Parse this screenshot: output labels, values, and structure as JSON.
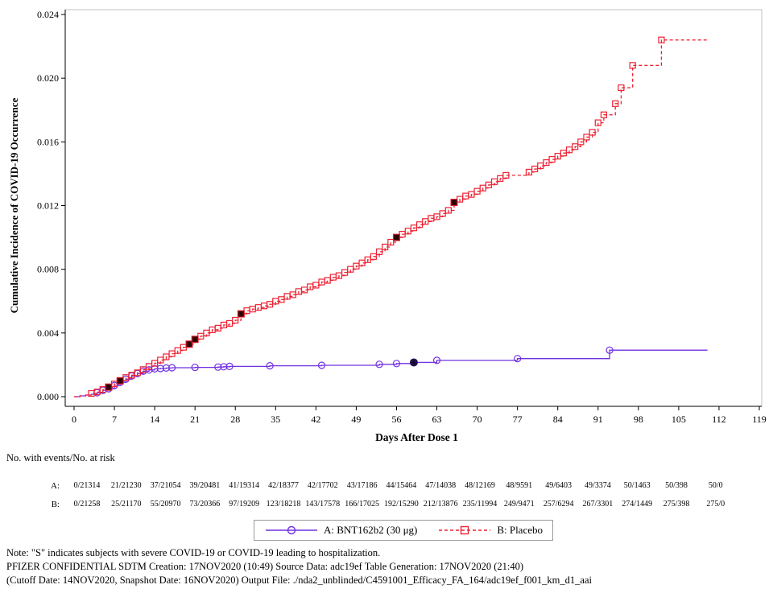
{
  "chart_data": {
    "type": "line",
    "step": true,
    "title": "",
    "xlabel": "Days After Dose 1",
    "ylabel": "Cumulative Incidence of COVID-19 Occurrence",
    "xlim": [
      0,
      119
    ],
    "ylim": [
      0,
      0.024
    ],
    "xticks": [
      0,
      7,
      14,
      21,
      28,
      35,
      42,
      49,
      56,
      63,
      70,
      77,
      84,
      91,
      98,
      105,
      112,
      119
    ],
    "yticks": [
      [
        0,
        "0.000"
      ],
      [
        0.004,
        "0.004"
      ],
      [
        0.008,
        "0.008"
      ],
      [
        0.012,
        "0.012"
      ],
      [
        0.016,
        "0.016"
      ],
      [
        0.02,
        "0.020"
      ],
      [
        0.024,
        "0.024"
      ]
    ],
    "severe_symbol": "S",
    "series": [
      {
        "name": "A: BNT162b2 (30 μg)",
        "color": "#7030E0",
        "severe_color": "#241152",
        "line": "solid",
        "marker": "circle",
        "points": [
          [
            0,
            0,
            ""
          ],
          [
            1,
            5e-05,
            ""
          ],
          [
            2,
            0.0001,
            ""
          ],
          [
            3,
            0.00015,
            ""
          ],
          [
            4,
            0.00025,
            "m"
          ],
          [
            5,
            0.0004,
            "m"
          ],
          [
            6,
            0.0005,
            "m"
          ],
          [
            7,
            0.0007,
            "m"
          ],
          [
            8,
            0.0009,
            "m"
          ],
          [
            9,
            0.0011,
            "m"
          ],
          [
            10,
            0.0013,
            "m"
          ],
          [
            11,
            0.00145,
            "m"
          ],
          [
            12,
            0.0016,
            "m"
          ],
          [
            13,
            0.00168,
            "m"
          ],
          [
            14,
            0.00175,
            "m"
          ],
          [
            15,
            0.00177,
            "m"
          ],
          [
            16,
            0.0018,
            "m"
          ],
          [
            17,
            0.00182,
            "m"
          ],
          [
            21,
            0.00184,
            "m"
          ],
          [
            25,
            0.00186,
            "m"
          ],
          [
            26,
            0.00188,
            "m"
          ],
          [
            27,
            0.0019,
            "m"
          ],
          [
            34,
            0.00194,
            "m"
          ],
          [
            43,
            0.00197,
            "m"
          ],
          [
            53,
            0.00203,
            "m"
          ],
          [
            56,
            0.00208,
            "m"
          ],
          [
            59,
            0.00215,
            "s"
          ],
          [
            63,
            0.00228,
            "m"
          ],
          [
            77,
            0.00239,
            "m"
          ],
          [
            93,
            0.00292,
            "m"
          ],
          [
            110,
            0.00292,
            ""
          ]
        ]
      },
      {
        "name": "B: Placebo",
        "color": "#EE2233",
        "severe_color": "#420707",
        "line": "dashed",
        "marker": "square",
        "points": [
          [
            0,
            0,
            ""
          ],
          [
            1,
            5e-05,
            ""
          ],
          [
            2,
            0.0001,
            ""
          ],
          [
            3,
            0.0002,
            "m"
          ],
          [
            4,
            0.0003,
            "m"
          ],
          [
            5,
            0.00045,
            "m"
          ],
          [
            6,
            0.0006,
            "s"
          ],
          [
            7,
            0.0008,
            "m"
          ],
          [
            8,
            0.001,
            "s"
          ],
          [
            9,
            0.0012,
            "m"
          ],
          [
            10,
            0.00135,
            "m"
          ],
          [
            11,
            0.0015,
            "m"
          ],
          [
            12,
            0.0017,
            "m"
          ],
          [
            13,
            0.0019,
            "m"
          ],
          [
            14,
            0.0021,
            "m"
          ],
          [
            15,
            0.0023,
            "m"
          ],
          [
            16,
            0.0025,
            "m"
          ],
          [
            17,
            0.0027,
            "m"
          ],
          [
            18,
            0.0029,
            "m"
          ],
          [
            19,
            0.0031,
            "m"
          ],
          [
            20,
            0.0033,
            "s"
          ],
          [
            21,
            0.0036,
            "s"
          ],
          [
            22,
            0.0038,
            "m"
          ],
          [
            23,
            0.004,
            "m"
          ],
          [
            24,
            0.0042,
            "m"
          ],
          [
            25,
            0.0043,
            "m"
          ],
          [
            26,
            0.0045,
            "m"
          ],
          [
            27,
            0.0046,
            "m"
          ],
          [
            28,
            0.0048,
            "m"
          ],
          [
            29,
            0.0052,
            "s"
          ],
          [
            30,
            0.0054,
            "m"
          ],
          [
            31,
            0.0055,
            "m"
          ],
          [
            32,
            0.0056,
            "m"
          ],
          [
            33,
            0.0057,
            "m"
          ],
          [
            34,
            0.0058,
            "m"
          ],
          [
            35,
            0.006,
            "m"
          ],
          [
            36,
            0.0061,
            "m"
          ],
          [
            37,
            0.0063,
            "m"
          ],
          [
            38,
            0.0064,
            "m"
          ],
          [
            39,
            0.0066,
            "m"
          ],
          [
            40,
            0.0067,
            "m"
          ],
          [
            41,
            0.0069,
            "m"
          ],
          [
            42,
            0.007,
            "m"
          ],
          [
            43,
            0.0072,
            "m"
          ],
          [
            44,
            0.0073,
            "m"
          ],
          [
            45,
            0.0075,
            "m"
          ],
          [
            46,
            0.0076,
            "m"
          ],
          [
            47,
            0.0078,
            "m"
          ],
          [
            48,
            0.008,
            "m"
          ],
          [
            49,
            0.0082,
            "m"
          ],
          [
            50,
            0.0084,
            "m"
          ],
          [
            51,
            0.0086,
            "m"
          ],
          [
            52,
            0.0088,
            "m"
          ],
          [
            53,
            0.0091,
            "m"
          ],
          [
            54,
            0.0094,
            "m"
          ],
          [
            55,
            0.0097,
            "m"
          ],
          [
            56,
            0.01,
            "s"
          ],
          [
            57,
            0.0102,
            "m"
          ],
          [
            58,
            0.0104,
            "m"
          ],
          [
            59,
            0.0106,
            "m"
          ],
          [
            60,
            0.0108,
            "m"
          ],
          [
            61,
            0.011,
            "m"
          ],
          [
            62,
            0.0112,
            "m"
          ],
          [
            63,
            0.0113,
            "m"
          ],
          [
            64,
            0.0115,
            "m"
          ],
          [
            65,
            0.0117,
            "m"
          ],
          [
            66,
            0.0122,
            "s"
          ],
          [
            67,
            0.0124,
            "m"
          ],
          [
            68,
            0.0126,
            "m"
          ],
          [
            69,
            0.0127,
            "m"
          ],
          [
            70,
            0.0129,
            "m"
          ],
          [
            71,
            0.0131,
            "m"
          ],
          [
            72,
            0.0133,
            "m"
          ],
          [
            73,
            0.0135,
            "m"
          ],
          [
            74,
            0.0137,
            "m"
          ],
          [
            75,
            0.0139,
            "m"
          ],
          [
            79,
            0.0141,
            "m"
          ],
          [
            80,
            0.0143,
            "m"
          ],
          [
            81,
            0.0145,
            "m"
          ],
          [
            82,
            0.0147,
            "m"
          ],
          [
            83,
            0.0149,
            "m"
          ],
          [
            84,
            0.0151,
            "m"
          ],
          [
            85,
            0.0153,
            "m"
          ],
          [
            86,
            0.0155,
            "m"
          ],
          [
            87,
            0.0157,
            "m"
          ],
          [
            88,
            0.016,
            "m"
          ],
          [
            89,
            0.0163,
            "m"
          ],
          [
            90,
            0.0166,
            "m"
          ],
          [
            91,
            0.0172,
            "m"
          ],
          [
            92,
            0.0177,
            "m"
          ],
          [
            94,
            0.0184,
            "m"
          ],
          [
            95,
            0.0194,
            "m"
          ],
          [
            97,
            0.0208,
            "m"
          ],
          [
            102,
            0.0224,
            "m"
          ],
          [
            110,
            0.0224,
            ""
          ]
        ]
      }
    ]
  },
  "risk_table": {
    "heading": "No. with events/No. at risk",
    "days": [
      0,
      7,
      14,
      21,
      28,
      35,
      42,
      49,
      56,
      63,
      70,
      77,
      84,
      91,
      98,
      105,
      112
    ],
    "rows": [
      {
        "label": "A:",
        "values": [
          "0/21314",
          "21/21230",
          "37/21054",
          "39/20481",
          "41/19314",
          "42/18377",
          "42/17702",
          "43/17186",
          "44/15464",
          "47/14038",
          "48/12169",
          "48/9591",
          "49/6403",
          "49/3374",
          "50/1463",
          "50/398",
          "50/0"
        ]
      },
      {
        "label": "B:",
        "values": [
          "0/21258",
          "25/21170",
          "55/20970",
          "73/20366",
          "97/19209",
          "123/18218",
          "143/17578",
          "166/17025",
          "192/15290",
          "212/13876",
          "235/11994",
          "249/9471",
          "257/6294",
          "267/3301",
          "274/1449",
          "275/398",
          "275/0"
        ]
      }
    ]
  },
  "legend": [
    {
      "label": "A: BNT162b2 (30 μg)",
      "color": "#7030E0",
      "line": "solid",
      "marker": "circle"
    },
    {
      "label": "B: Placebo",
      "color": "#EE2233",
      "line": "dashed",
      "marker": "square"
    }
  ],
  "notes": [
    "Note: \"S\" indicates subjects with severe COVID-19 or COVID-19 leading to hospitalization.",
    "PFIZER CONFIDENTIAL  SDTM Creation: 17NOV2020 (10:49)  Source Data: adc19ef  Table Generation: 17NOV2020 (21:40)",
    "(Cutoff Date: 14NOV2020, Snapshot Date: 16NOV2020) Output File: ./nda2_unblinded/C4591001_Efficacy_FA_164/adc19ef_f001_km_d1_aai"
  ]
}
